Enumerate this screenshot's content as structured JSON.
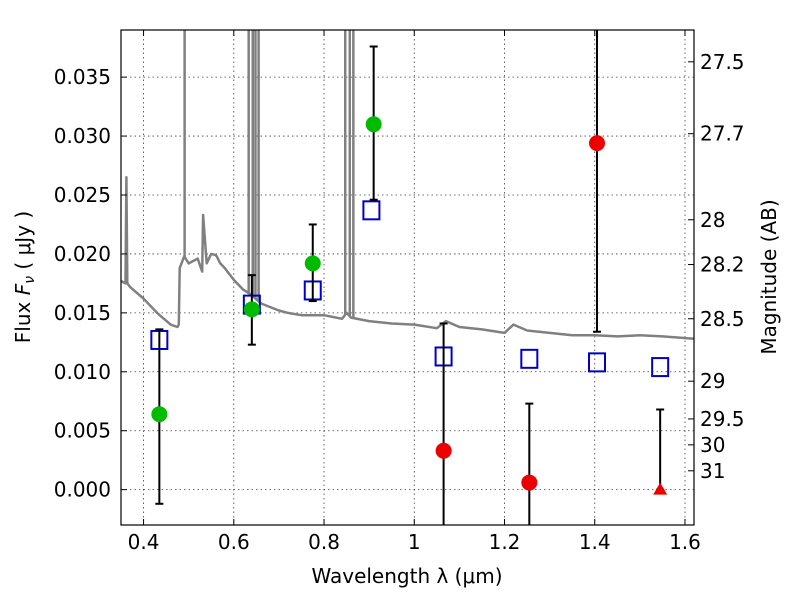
{
  "chart_data": {
    "type": "scatter",
    "xlabel": "Wavelength  λ (μm)",
    "ylabel_parts": [
      "Flux  ",
      "F",
      "ν",
      "  ( μJy )"
    ],
    "y2label": "Magnitude (AB)",
    "xlim": [
      0.35,
      1.62
    ],
    "ylim": [
      -0.003,
      0.039
    ],
    "grid": true,
    "x_ticks": [
      0.4,
      0.6,
      0.8,
      1.0,
      1.2,
      1.4,
      1.6
    ],
    "x_tick_labels": [
      "0.4",
      "0.6",
      "0.8",
      "1",
      "1.2",
      "1.4",
      "1.6"
    ],
    "y_ticks": [
      0.0,
      0.005,
      0.01,
      0.015,
      0.02,
      0.025,
      0.03,
      0.035
    ],
    "y_tick_labels": [
      "0.000",
      "0.005",
      "0.010",
      "0.015",
      "0.020",
      "0.025",
      "0.030",
      "0.035"
    ],
    "right_axis": {
      "ticks": [
        {
          "flux": 0.0363,
          "label": "27.5"
        },
        {
          "flux": 0.0302,
          "label": "27.7"
        },
        {
          "flux": 0.0229,
          "label": "28"
        },
        {
          "flux": 0.0191,
          "label": "28.2"
        },
        {
          "flux": 0.0145,
          "label": "28.5"
        },
        {
          "flux": 0.0092,
          "label": "29"
        },
        {
          "flux": 0.006,
          "label": "29.5"
        },
        {
          "flux": 0.0038,
          "label": "30"
        },
        {
          "flux": 0.0016,
          "label": "31"
        }
      ]
    },
    "sed_model": {
      "color": "#808080",
      "x": [
        0.35,
        0.36,
        0.362,
        0.364,
        0.37,
        0.4,
        0.43,
        0.46,
        0.475,
        0.478,
        0.48,
        0.49,
        0.5,
        0.52,
        0.53,
        0.532,
        0.54,
        0.55,
        0.56,
        0.562,
        0.57,
        0.58,
        0.6,
        0.62,
        0.64,
        0.66,
        0.68,
        0.7,
        0.72,
        0.75,
        0.8,
        0.84,
        0.85,
        0.86,
        0.9,
        0.95,
        1.0,
        1.05,
        1.07,
        1.1,
        1.15,
        1.2,
        1.22,
        1.25,
        1.3,
        1.35,
        1.4,
        1.45,
        1.5,
        1.55,
        1.62
      ],
      "y": [
        0.0177,
        0.0175,
        0.0265,
        0.0175,
        0.0172,
        0.0162,
        0.015,
        0.014,
        0.0138,
        0.014,
        0.0188,
        0.0198,
        0.0192,
        0.0196,
        0.0185,
        0.0233,
        0.0192,
        0.02,
        0.0199,
        0.0198,
        0.0192,
        0.0188,
        0.0178,
        0.017,
        0.0165,
        0.0158,
        0.0155,
        0.0152,
        0.015,
        0.0148,
        0.0148,
        0.0145,
        0.015,
        0.0146,
        0.0143,
        0.0141,
        0.014,
        0.0137,
        0.0143,
        0.0138,
        0.0136,
        0.0133,
        0.014,
        0.0135,
        0.0133,
        0.0131,
        0.0131,
        0.013,
        0.0131,
        0.013,
        0.0128
      ]
    },
    "emission_lines": [
      {
        "x": 0.491,
        "y": 0.039
      },
      {
        "x": 0.633,
        "y": 0.039
      },
      {
        "x": 0.642,
        "y": 0.039
      },
      {
        "x": 0.648,
        "y": 0.039
      },
      {
        "x": 0.655,
        "y": 0.039
      },
      {
        "x": 0.847,
        "y": 0.039
      },
      {
        "x": 0.857,
        "y": 0.039
      },
      {
        "x": 0.865,
        "y": 0.039
      }
    ],
    "model_fluxes": {
      "marker": "open-square",
      "color": "#0000cc",
      "x": [
        0.435,
        0.64,
        0.775,
        0.905,
        1.065,
        1.255,
        1.405,
        1.545
      ],
      "y": [
        0.0127,
        0.0157,
        0.0169,
        0.0237,
        0.0113,
        0.0111,
        0.0108,
        0.0104
      ]
    },
    "detections": {
      "marker": "circle",
      "color": "#00bb00",
      "x": [
        0.435,
        0.64,
        0.775,
        0.91
      ],
      "y": [
        0.0064,
        0.0153,
        0.0192,
        0.031
      ],
      "yerr_low": [
        -0.0012,
        0.0123,
        0.016,
        0.0246
      ],
      "yerr_high": [
        0.0136,
        0.0182,
        0.0225,
        0.0376
      ]
    },
    "nondetections": {
      "marker": "circle",
      "color": "#ee0000",
      "x": [
        1.065,
        1.255,
        1.405
      ],
      "y": [
        0.0033,
        0.0006,
        0.0294
      ],
      "yerr_low": [
        -0.004,
        -0.004,
        0.0134
      ],
      "yerr_high": [
        0.0141,
        0.0073,
        0.0392
      ]
    },
    "upper_limit": {
      "marker": "triangle",
      "color": "#ee0000",
      "x": 1.545,
      "y": 0.0,
      "yerr_low": 0.0,
      "yerr_high": 0.0068
    }
  }
}
